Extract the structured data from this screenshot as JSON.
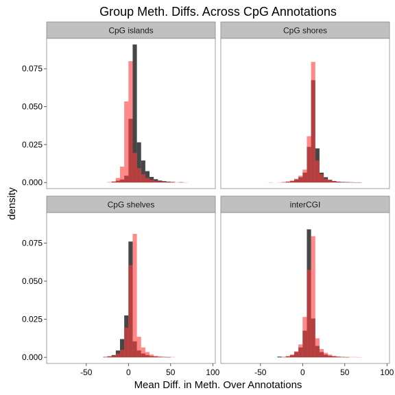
{
  "chart_data": {
    "type": "histogram",
    "title": "Group Meth. Diffs. Across CpG Annotations",
    "xlabel": "Mean Diff. in Meth. Over Annotations",
    "ylabel": "density",
    "x_ticks": [
      -50,
      0,
      50,
      100
    ],
    "y_ticks": [
      0.0,
      0.025,
      0.05,
      0.075
    ],
    "y_tick_labels": [
      "0.000",
      "0.025",
      "0.050",
      "0.075"
    ],
    "xlim": [
      -97,
      103
    ],
    "ylim": [
      -0.004,
      0.095
    ],
    "bin_width": 5,
    "bin_start": -55,
    "colors": {
      "series_a": "#262626",
      "series_b": "#ff3b3b"
    },
    "facets": [
      {
        "label": "CpG islands",
        "a": [
          0,
          0,
          0,
          0,
          0,
          0,
          0,
          0.0005,
          0.0012,
          0.002,
          0.0045,
          0.042,
          0.091,
          0.0265,
          0.0145,
          0.0075,
          0.0037,
          0.0022,
          0.0013,
          0.0009,
          0.0006,
          0.0004,
          0,
          0.0002,
          0,
          0
        ],
        "b": [
          0,
          0,
          0,
          0,
          0,
          0,
          0.0003,
          0.0008,
          0.003,
          0.0105,
          0.0535,
          0.08,
          0.0195,
          0.0095,
          0.0055,
          0.003,
          0.0018,
          0.0011,
          0.0007,
          0.0005,
          0.0004,
          0.0003,
          0.0002,
          0.0001,
          0.0001,
          0
        ]
      },
      {
        "label": "CpG shores",
        "a": [
          0,
          0,
          0,
          0,
          0,
          0,
          0.0002,
          0.0005,
          0.001,
          0.002,
          0.0035,
          0.0065,
          0.0235,
          0.0675,
          0.0225,
          0.0065,
          0.0035,
          0.0018,
          0.001,
          0.0006,
          0.0004,
          0.0003,
          0.0002,
          0.0001,
          0.0001,
          0
        ],
        "b": [
          0,
          0,
          0,
          0.0001,
          0,
          0.0001,
          0.0003,
          0.0007,
          0.0013,
          0.0025,
          0.0045,
          0.0085,
          0.0305,
          0.0795,
          0.0145,
          0.0055,
          0.0025,
          0.0015,
          0.0008,
          0.0005,
          0.0003,
          0.0002,
          0.0001,
          0.0001,
          0.0001,
          0
        ]
      },
      {
        "label": "CpG shelves",
        "a": [
          0,
          0,
          0,
          0,
          0,
          0.0003,
          0.0007,
          0.0015,
          0.0045,
          0.012,
          0.0275,
          0.076,
          0.0105,
          0.0045,
          0.0025,
          0.0015,
          0.0008,
          0.0005,
          0.0003,
          0.0002,
          0.0001,
          0,
          0,
          0,
          0,
          0
        ],
        "b": [
          0,
          0,
          0,
          0,
          0,
          0.0002,
          0.0005,
          0.001,
          0.0025,
          0.005,
          0.0195,
          0.0605,
          0.081,
          0.0135,
          0.0065,
          0.0035,
          0.0018,
          0.001,
          0.0006,
          0.0004,
          0.0003,
          0.0002,
          0,
          0,
          0,
          0
        ]
      },
      {
        "label": "interCGI",
        "a": [
          0,
          0,
          0,
          0,
          0,
          0.0005,
          0.0002,
          0.0007,
          0.0015,
          0.0035,
          0.0065,
          0.0175,
          0.084,
          0.0255,
          0.0075,
          0.0035,
          0.0018,
          0.001,
          0.0006,
          0.0004,
          0.0002,
          0.0001,
          0,
          0,
          0,
          0
        ],
        "b": [
          0,
          0,
          0,
          0,
          0,
          0,
          0.0003,
          0.0008,
          0.0018,
          0.004,
          0.0085,
          0.0265,
          0.0575,
          0.0795,
          0.0125,
          0.0055,
          0.003,
          0.0018,
          0.001,
          0.0006,
          0.0004,
          0.0003,
          0.0002,
          0.0002,
          0.0001,
          0
        ]
      }
    ]
  }
}
